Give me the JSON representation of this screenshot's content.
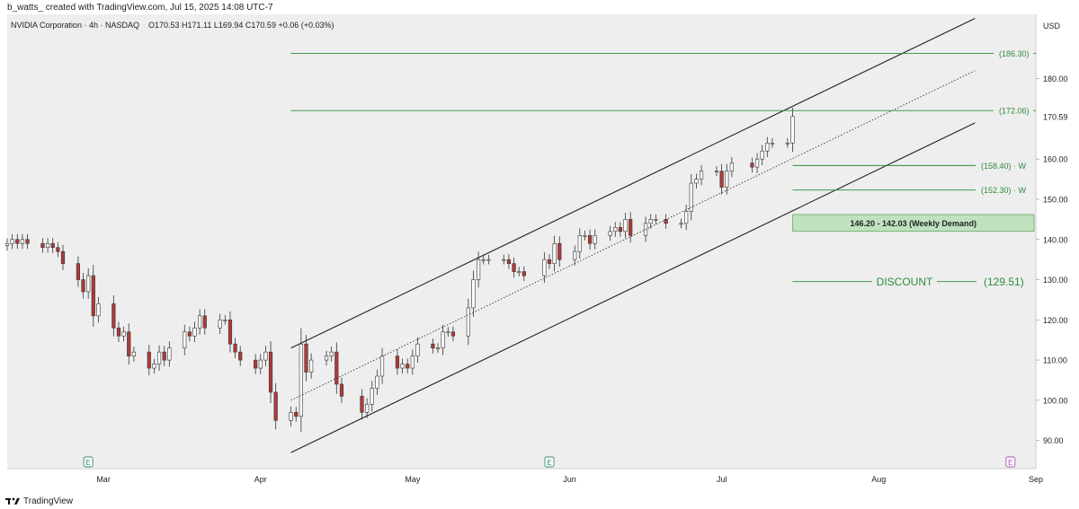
{
  "header": {
    "attribution": "b_watts_ created with TradingView.com, Jul 15, 2025 14:08 UTC-7"
  },
  "legend": {
    "symbol": "NVIDIA Corporation · 4h · NASDAQ",
    "ohlc": "O170.53 H171.11 L169.94 C170.59 +0.06 (+0.03%)"
  },
  "footer": {
    "brand": "TradingView",
    "logo_icon": "tradingview-logo-icon"
  },
  "chart_data": {
    "type": "candlestick",
    "currency": "USD",
    "y_axis_ticks": [
      90,
      100,
      110,
      120,
      130,
      140,
      150,
      160,
      180
    ],
    "y_tick_labels": [
      "90.00",
      "100.00",
      "110.00",
      "120.00",
      "130.00",
      "140.00",
      "150.00",
      "160.00",
      "180.00"
    ],
    "ylim": [
      83,
      196
    ],
    "last_price": {
      "value": 170.59,
      "label": "170.59"
    },
    "x_axis_labels": [
      {
        "label": "Mar",
        "date": "2025-03-01"
      },
      {
        "label": "Apr",
        "date": "2025-04-01"
      },
      {
        "label": "May",
        "date": "2025-05-01"
      },
      {
        "label": "Jun",
        "date": "2025-06-01"
      },
      {
        "label": "Jul",
        "date": "2025-07-01"
      },
      {
        "label": "Aug",
        "date": "2025-08-01"
      },
      {
        "label": "Sep",
        "date": "2025-09-01"
      }
    ],
    "xlim": [
      "2025-02-10",
      "2025-09-01"
    ],
    "colors": {
      "up": "#ffffff",
      "down": "#b23a3a",
      "level": "#2e8b3a",
      "channel": "#222222"
    },
    "candles_approx_close": [
      [
        "2025-02-10",
        139
      ],
      [
        "2025-02-11",
        140
      ],
      [
        "2025-02-12",
        139
      ],
      [
        "2025-02-13",
        140
      ],
      [
        "2025-02-14",
        139
      ],
      [
        "2025-02-17",
        138
      ],
      [
        "2025-02-18",
        139
      ],
      [
        "2025-02-19",
        138
      ],
      [
        "2025-02-20",
        137
      ],
      [
        "2025-02-21",
        134
      ],
      [
        "2025-02-24",
        130
      ],
      [
        "2025-02-25",
        127
      ],
      [
        "2025-02-26",
        131
      ],
      [
        "2025-02-27",
        121
      ],
      [
        "2025-02-28",
        124
      ],
      [
        "2025-03-03",
        118
      ],
      [
        "2025-03-04",
        116
      ],
      [
        "2025-03-05",
        117
      ],
      [
        "2025-03-06",
        111
      ],
      [
        "2025-03-07",
        112
      ],
      [
        "2025-03-10",
        108
      ],
      [
        "2025-03-11",
        109
      ],
      [
        "2025-03-12",
        112
      ],
      [
        "2025-03-13",
        110
      ],
      [
        "2025-03-14",
        113
      ],
      [
        "2025-03-17",
        117
      ],
      [
        "2025-03-18",
        116
      ],
      [
        "2025-03-19",
        118
      ],
      [
        "2025-03-20",
        121
      ],
      [
        "2025-03-21",
        118
      ],
      [
        "2025-03-24",
        120
      ],
      [
        "2025-03-25",
        120
      ],
      [
        "2025-03-26",
        114
      ],
      [
        "2025-03-27",
        112
      ],
      [
        "2025-03-28",
        110
      ],
      [
        "2025-03-31",
        108
      ],
      [
        "2025-04-01",
        110
      ],
      [
        "2025-04-02",
        112
      ],
      [
        "2025-04-03",
        102
      ],
      [
        "2025-04-04",
        95
      ],
      [
        "2025-04-07",
        97
      ],
      [
        "2025-04-08",
        96
      ],
      [
        "2025-04-09",
        114
      ],
      [
        "2025-04-10",
        107
      ],
      [
        "2025-04-11",
        110
      ],
      [
        "2025-04-14",
        111
      ],
      [
        "2025-04-15",
        112
      ],
      [
        "2025-04-16",
        104
      ],
      [
        "2025-04-17",
        101
      ],
      [
        "2025-04-21",
        97
      ],
      [
        "2025-04-22",
        99
      ],
      [
        "2025-04-23",
        103
      ],
      [
        "2025-04-24",
        106
      ],
      [
        "2025-04-25",
        111
      ],
      [
        "2025-04-28",
        108
      ],
      [
        "2025-04-29",
        109
      ],
      [
        "2025-04-30",
        108
      ],
      [
        "2025-05-01",
        111
      ],
      [
        "2025-05-02",
        114
      ],
      [
        "2025-05-05",
        113
      ],
      [
        "2025-05-06",
        113
      ],
      [
        "2025-05-07",
        117
      ],
      [
        "2025-05-08",
        117
      ],
      [
        "2025-05-09",
        116
      ],
      [
        "2025-05-12",
        123
      ],
      [
        "2025-05-13",
        130
      ],
      [
        "2025-05-14",
        135
      ],
      [
        "2025-05-15",
        135
      ],
      [
        "2025-05-16",
        135
      ],
      [
        "2025-05-19",
        135
      ],
      [
        "2025-05-20",
        134
      ],
      [
        "2025-05-21",
        132
      ],
      [
        "2025-05-22",
        132
      ],
      [
        "2025-05-23",
        131
      ],
      [
        "2025-05-27",
        135
      ],
      [
        "2025-05-28",
        134
      ],
      [
        "2025-05-29",
        139
      ],
      [
        "2025-05-30",
        135
      ],
      [
        "2025-06-02",
        137
      ],
      [
        "2025-06-03",
        141
      ],
      [
        "2025-06-04",
        141
      ],
      [
        "2025-06-05",
        139
      ],
      [
        "2025-06-06",
        141
      ],
      [
        "2025-06-09",
        142
      ],
      [
        "2025-06-10",
        143
      ],
      [
        "2025-06-11",
        142
      ],
      [
        "2025-06-12",
        145
      ],
      [
        "2025-06-13",
        141
      ],
      [
        "2025-06-16",
        144
      ],
      [
        "2025-06-17",
        145
      ],
      [
        "2025-06-18",
        145
      ],
      [
        "2025-06-20",
        144
      ],
      [
        "2025-06-23",
        144
      ],
      [
        "2025-06-24",
        147
      ],
      [
        "2025-06-25",
        154
      ],
      [
        "2025-06-26",
        155
      ],
      [
        "2025-06-27",
        157
      ],
      [
        "2025-06-30",
        157
      ],
      [
        "2025-07-01",
        153
      ],
      [
        "2025-07-02",
        157
      ],
      [
        "2025-07-03",
        159
      ],
      [
        "2025-07-07",
        158
      ],
      [
        "2025-07-08",
        160
      ],
      [
        "2025-07-09",
        162
      ],
      [
        "2025-07-10",
        164
      ],
      [
        "2025-07-11",
        164
      ],
      [
        "2025-07-14",
        164
      ],
      [
        "2025-07-15",
        170.59
      ]
    ],
    "channel": {
      "upper": {
        "from": [
          "2025-04-07",
          113
        ],
        "to": [
          "2025-08-20",
          195
        ]
      },
      "middle": {
        "from": [
          "2025-04-07",
          100
        ],
        "to": [
          "2025-08-20",
          182
        ]
      },
      "lower": {
        "from": [
          "2025-04-07",
          87
        ],
        "to": [
          "2025-08-20",
          169
        ]
      }
    },
    "horizontal_levels": [
      {
        "label": "(186.30)",
        "value": 186.3,
        "from": "2025-04-07"
      },
      {
        "label": "(172.06)",
        "value": 172.06,
        "from": "2025-04-07"
      },
      {
        "label": "(158.40) · W",
        "value": 158.4,
        "from": "2025-07-15"
      },
      {
        "label": "(152.30) · W",
        "value": 152.3,
        "from": "2025-07-15"
      }
    ],
    "demand_zone": {
      "label": "146.20 - 142.03 (Weekly Demand)",
      "top": 146.2,
      "bottom": 142.03,
      "from": "2025-07-15"
    },
    "discount_level": {
      "text": "DISCOUNT",
      "label": "(129.51)",
      "value": 129.51,
      "from": "2025-07-15"
    },
    "event_markers": [
      {
        "letter": "E",
        "date": "2025-02-26",
        "kind": "earnings"
      },
      {
        "letter": "E",
        "date": "2025-05-28",
        "kind": "earnings"
      },
      {
        "letter": "E",
        "date": "2025-08-27",
        "kind": "upcoming-earnings"
      }
    ]
  }
}
